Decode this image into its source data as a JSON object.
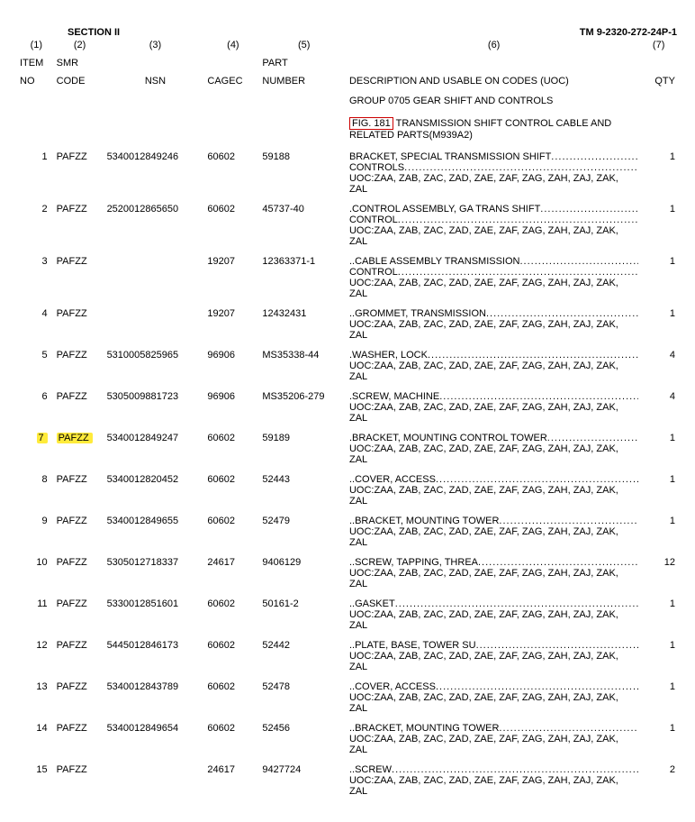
{
  "header": {
    "section": "SECTION II",
    "tm": "TM 9-2320-272-24P-1"
  },
  "columns": {
    "c1a": "(1)",
    "c1b": "ITEM",
    "c1c": "NO",
    "c2a": "(2)",
    "c2b": "SMR",
    "c2c": "CODE",
    "c3a": "(3)",
    "c3b": "NSN",
    "c4a": "(4)",
    "c4b": "CAGEC",
    "c5a": "(5)",
    "c5b": "PART",
    "c5c": "NUMBER",
    "c6a": "(6)",
    "c6b": "DESCRIPTION AND USABLE ON CODES (UOC)",
    "c7a": "(7)",
    "c7b": "QTY"
  },
  "group_line": "GROUP 0705 GEAR SHIFT AND CONTROLS",
  "fig_label": "FIG.  181",
  "fig_rest": " TRANSMISSION SHIFT CONTROL CABLE AND RELATED PARTS(M939A2)",
  "uoc_text": "UOC:ZAA, ZAB, ZAC, ZAD, ZAE, ZAF, ZAG, ZAH, ZAJ, ZAK, ZAL",
  "dots": "................................................................................",
  "rows": [
    {
      "item": "1",
      "smr": "PAFZZ",
      "nsn": "5340012849246",
      "cagec": "60602",
      "part": "59188",
      "desc1": "BRACKET, SPECIAL  TRANSMISSION SHIFT",
      "desc2": "CONTROLS ",
      "qty": "1",
      "hl": false
    },
    {
      "item": "2",
      "smr": "PAFZZ",
      "nsn": "2520012865650",
      "cagec": "60602",
      "part": "45737-40",
      "desc1": ".CONTROL ASSEMBLY, GA  TRANS SHIFT",
      "desc2": "CONTROL ",
      "qty": "1",
      "hl": false
    },
    {
      "item": "3",
      "smr": "PAFZZ",
      "nsn": "",
      "cagec": "19207",
      "part": "12363371-1",
      "desc1": "..CABLE ASSEMBLY  TRANSMISSION",
      "desc2": "CONTROL ",
      "qty": "1",
      "hl": false
    },
    {
      "item": "4",
      "smr": "PAFZZ",
      "nsn": "",
      "cagec": "19207",
      "part": "12432431",
      "desc1": "..GROMMET, TRANSMISSION ",
      "desc2": "",
      "qty": "1",
      "hl": false
    },
    {
      "item": "5",
      "smr": "PAFZZ",
      "nsn": "5310005825965",
      "cagec": "96906",
      "part": "MS35338-44",
      "desc1": ".WASHER, LOCK ",
      "desc2": "",
      "qty": "4",
      "hl": false
    },
    {
      "item": "6",
      "smr": "PAFZZ",
      "nsn": "5305009881723",
      "cagec": "96906",
      "part": "MS35206-279",
      "desc1": ".SCREW, MACHINE ",
      "desc2": "",
      "qty": "4",
      "hl": false
    },
    {
      "item": "7",
      "smr": "PAFZZ",
      "nsn": "5340012849247",
      "cagec": "60602",
      "part": "59189",
      "desc1": ".BRACKET, MOUNTING  CONTROL TOWER ",
      "desc2": "",
      "qty": "1",
      "hl": true
    },
    {
      "item": "8",
      "smr": "PAFZZ",
      "nsn": "5340012820452",
      "cagec": "60602",
      "part": "52443",
      "desc1": "..COVER, ACCESS",
      "desc2": "",
      "qty": "1",
      "hl": false
    },
    {
      "item": "9",
      "smr": "PAFZZ",
      "nsn": "5340012849655",
      "cagec": "60602",
      "part": "52479",
      "desc1": "..BRACKET, MOUNTING  TOWER  ",
      "desc2": "",
      "qty": "1",
      "hl": false
    },
    {
      "item": "10",
      "smr": "PAFZZ",
      "nsn": "5305012718337",
      "cagec": "24617",
      "part": "9406129",
      "desc1": "..SCREW, TAPPING, THREA ",
      "desc2": "",
      "qty": "12",
      "hl": false
    },
    {
      "item": "11",
      "smr": "PAFZZ",
      "nsn": "5330012851601",
      "cagec": "60602",
      "part": "50161-2",
      "desc1": "..GASKET",
      "desc2": "",
      "qty": "1",
      "hl": false
    },
    {
      "item": "12",
      "smr": "PAFZZ",
      "nsn": "5445012846173",
      "cagec": "60602",
      "part": "52442",
      "desc1": "..PLATE, BASE, TOWER SU ",
      "desc2": "",
      "qty": "1",
      "hl": false
    },
    {
      "item": "13",
      "smr": "PAFZZ",
      "nsn": "5340012843789",
      "cagec": "60602",
      "part": "52478",
      "desc1": "..COVER, ACCESS",
      "desc2": "",
      "qty": "1",
      "hl": false
    },
    {
      "item": "14",
      "smr": "PAFZZ",
      "nsn": "5340012849654",
      "cagec": "60602",
      "part": "52456",
      "desc1": "..BRACKET, MOUNTING  TOWER  ",
      "desc2": "",
      "qty": "1",
      "hl": false
    },
    {
      "item": "15",
      "smr": "PAFZZ",
      "nsn": "",
      "cagec": "24617",
      "part": "9427724",
      "desc1": "..SCREW",
      "desc2": "",
      "qty": "2",
      "hl": false
    }
  ],
  "colwidths": {
    "item": 40,
    "smr": 55,
    "nsn": 105,
    "cagec": 55,
    "part": 95,
    "desc": 300,
    "qty": 40
  },
  "colors": {
    "highlight": "#ffeb3b",
    "figbox": "#c00000"
  }
}
